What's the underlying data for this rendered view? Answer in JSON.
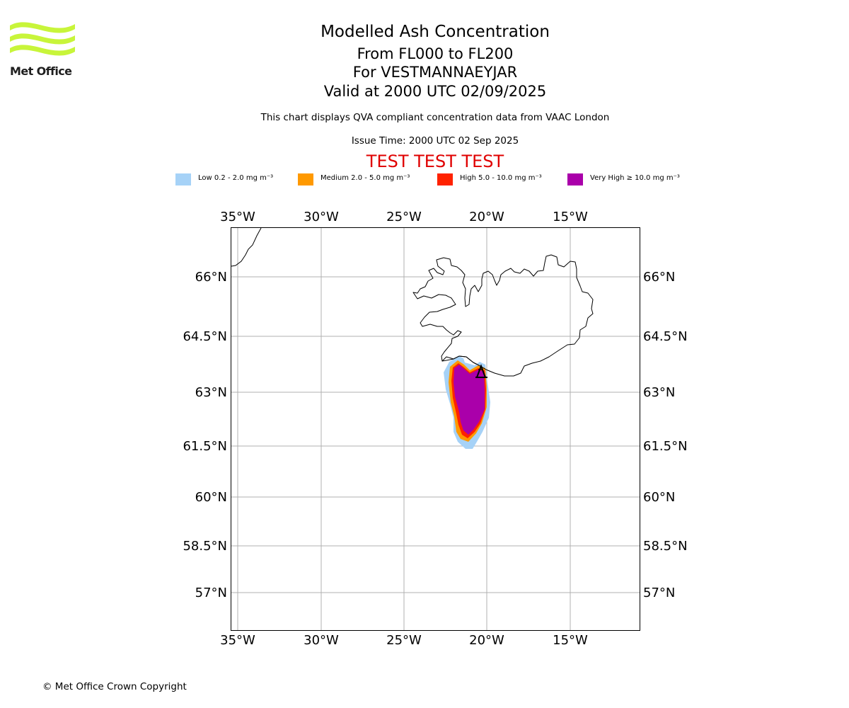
{
  "branding": {
    "logo_text": "Met Office",
    "logo_color": "#c8f53a"
  },
  "header": {
    "title": "Modelled Ash Concentration",
    "level_range": "From FL000 to FL200",
    "volcano": "For VESTMANNAEYJAR",
    "valid_time": "Valid at 2000 UTC 02/09/2025",
    "note": "This chart displays QVA compliant concentration data from VAAC London",
    "issue_time": "Issue Time: 2000 UTC 02 Sep 2025",
    "test_banner": "TEST TEST TEST",
    "test_banner_color": "#e00000"
  },
  "legend": [
    {
      "label": "Low 0.2 - 2.0 mg m⁻³",
      "color": "#a6d2f7"
    },
    {
      "label": "Medium 2.0 - 5.0 mg m⁻³",
      "color": "#ff9900"
    },
    {
      "label": "High 5.0 - 10.0 mg m⁻³",
      "color": "#ff2200"
    },
    {
      "label": "Very High ≥ 10.0 mg m⁻³",
      "color": "#aa00aa"
    }
  ],
  "map": {
    "projection": "lat-lon",
    "lon_range": [
      -35.8,
      -11.2
    ],
    "lat_range": [
      55.8,
      67.3
    ],
    "lon_ticks": [
      "35°W",
      "30°W",
      "25°W",
      "20°W",
      "15°W"
    ],
    "lat_ticks": [
      "66°N",
      "64.5°N",
      "63°N",
      "61.5°N",
      "60°N",
      "58.5°N",
      "57°N"
    ],
    "gridlines": true,
    "volcano_name": "VESTMANNAEYJAR",
    "volcano_marker": "triangle-icon"
  },
  "footer": {
    "copyright": "© Met Office Crown Copyright"
  }
}
